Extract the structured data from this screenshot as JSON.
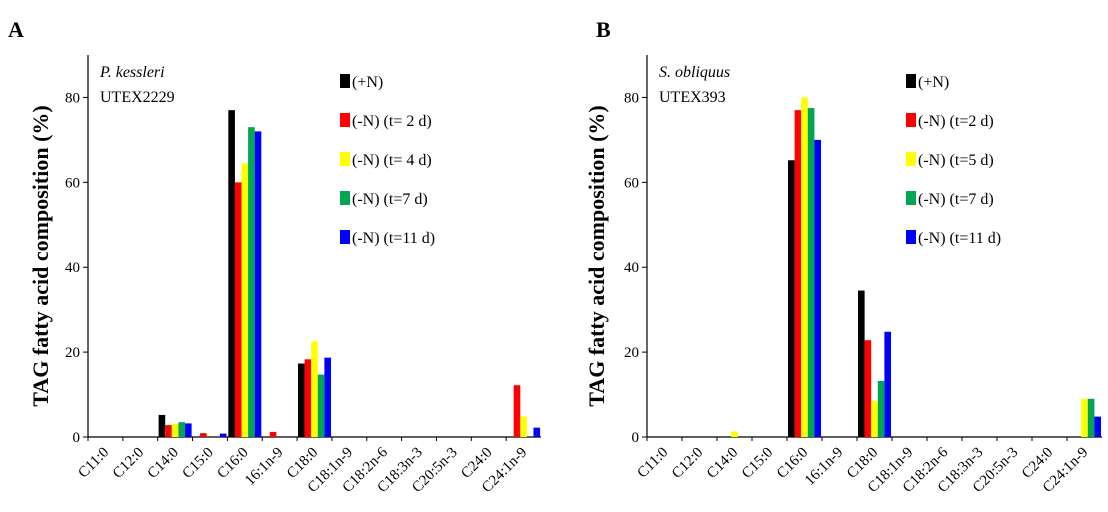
{
  "chart_data": [
    {
      "type": "bar",
      "panel": "A",
      "title_italic": "P. kessleri",
      "title_plain": "UTEX2229",
      "xlabel": "",
      "ylabel": "TAG fatty acid composition (%)",
      "ylim": [
        0,
        90
      ],
      "yticks": [
        "0",
        "20",
        "40",
        "60",
        "80"
      ],
      "legend_position": "top-right",
      "categories": [
        "C11:0",
        "C12:0",
        "C14:0",
        "C15:0",
        "C16:0",
        "16:1n-9",
        "C18:0",
        "C18:1n-9",
        "C18:2n-6",
        "C18:3n-3",
        "C20:5n-3",
        "C24:0",
        "C24:1n-9"
      ],
      "series": [
        {
          "name": "(+N)",
          "color": "#000000",
          "values": [
            0,
            0,
            5.2,
            0,
            77,
            0,
            17.3,
            0,
            0,
            0,
            0,
            0,
            0
          ]
        },
        {
          "name": "(-N) (t= 2 d)",
          "color": "#ff0000",
          "values": [
            0,
            0,
            2.8,
            0.9,
            60,
            1.2,
            18.3,
            0,
            0,
            0,
            0,
            0,
            12.2
          ]
        },
        {
          "name": "(-N) (t= 4 d)",
          "color": "#ffff00",
          "values": [
            0,
            0,
            3.1,
            0,
            64.5,
            0,
            22.5,
            0,
            0,
            0,
            0,
            0,
            4.8
          ]
        },
        {
          "name": "(-N) (t=7 d)",
          "color": "#00a651",
          "values": [
            0,
            0,
            3.5,
            0,
            73,
            0,
            14.7,
            0,
            0,
            0,
            0,
            0,
            0
          ]
        },
        {
          "name": "(-N) (t=11 d)",
          "color": "#0000ff",
          "values": [
            0,
            0,
            3.2,
            0.8,
            72,
            0,
            18.7,
            0,
            0,
            0,
            0,
            0,
            2.2
          ]
        }
      ]
    },
    {
      "type": "bar",
      "panel": "B",
      "title_italic": "S. obliquus",
      "title_plain": "UTEX393",
      "xlabel": "",
      "ylabel": "TAG fatty acid composition (%)",
      "ylim": [
        0,
        90
      ],
      "yticks": [
        "0",
        "20",
        "40",
        "60",
        "80"
      ],
      "legend_position": "top-right",
      "categories": [
        "C11:0",
        "C12:0",
        "C14:0",
        "C15:0",
        "C16:0",
        "16:1n-9",
        "C18:0",
        "C18:1n-9",
        "C18:2n-6",
        "C18:3n-3",
        "C20:5n-3",
        "C24:0",
        "C24:1n-9"
      ],
      "series": [
        {
          "name": "(+N)",
          "color": "#000000",
          "values": [
            0,
            0,
            0,
            0,
            65.2,
            0,
            34.5,
            0,
            0,
            0,
            0,
            0,
            0
          ]
        },
        {
          "name": "(-N) (t=2 d)",
          "color": "#ff0000",
          "values": [
            0,
            0,
            0,
            0,
            77,
            0,
            22.8,
            0,
            0,
            0,
            0,
            0,
            0
          ]
        },
        {
          "name": "(-N) (t=5 d)",
          "color": "#ffff00",
          "values": [
            0,
            0,
            1.3,
            0,
            80,
            0,
            8.5,
            0,
            0,
            0,
            0,
            0,
            9
          ]
        },
        {
          "name": "(-N) (t=7 d)",
          "color": "#00a651",
          "values": [
            0,
            0,
            0,
            0,
            77.5,
            0,
            13.2,
            0,
            0,
            0,
            0,
            0,
            9
          ]
        },
        {
          "name": "(-N) (t=11 d)",
          "color": "#0000ff",
          "values": [
            0,
            0,
            0,
            0,
            70,
            0,
            24.8,
            0,
            0,
            0,
            0,
            0,
            4.8
          ]
        }
      ]
    }
  ]
}
